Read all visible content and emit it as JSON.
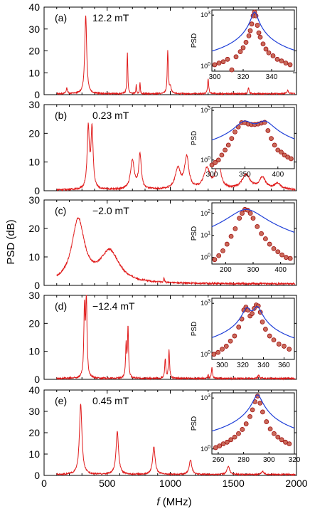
{
  "figure": {
    "ylabel": "PSD (dB)",
    "xlabel_italic": "f",
    "xlabel_unit": " (MHz)"
  },
  "chart_data": [
    {
      "type": "line",
      "panel": "(a)",
      "field": "12.2 mT",
      "xlim": [
        0,
        2000
      ],
      "ylim": [
        0,
        40
      ],
      "yticks": [
        "0",
        "10",
        "20",
        "30",
        "40"
      ],
      "xticks": [],
      "baseline": 0.4,
      "xstart": 100,
      "xend": 1990,
      "peaks": [
        [
          180,
          2.5,
          6
        ],
        [
          330,
          36,
          9
        ],
        [
          660,
          19,
          4
        ],
        [
          730,
          4,
          3
        ],
        [
          760,
          5,
          3
        ],
        [
          980,
          19.5,
          5
        ],
        [
          1000,
          3,
          8
        ],
        [
          1300,
          7,
          5
        ],
        [
          1620,
          3,
          5
        ],
        [
          1930,
          1.5,
          8
        ]
      ],
      "inset": {
        "ylabel": "PSD",
        "xlim": [
          298,
          356
        ],
        "xticks": [
          "300",
          "320",
          "340"
        ],
        "ylog": [
          0.5,
          2000
        ],
        "yticks": [
          "10^0",
          "10^3"
        ],
        "fit": [
          [
            328,
            1500,
            2
          ]
        ],
        "fitbase": 1,
        "points_x": [
          300,
          303,
          306,
          309,
          312,
          315,
          318,
          320,
          322,
          324,
          325,
          326,
          327,
          328,
          329,
          330,
          331,
          332,
          334,
          336,
          338,
          341,
          344,
          347,
          350,
          353
        ],
        "points_y": [
          1.2,
          1.5,
          1.8,
          2.5,
          0.6,
          3.5,
          7,
          12,
          25,
          60,
          120,
          300,
          900,
          1500,
          900,
          250,
          90,
          50,
          20,
          10,
          6,
          4,
          2.5,
          2,
          1.5,
          1.2
        ]
      }
    },
    {
      "type": "line",
      "panel": "(b)",
      "field": "0.23 mT",
      "xlim": [
        0,
        2000
      ],
      "ylim": [
        0,
        30
      ],
      "yticks": [
        "0",
        "10",
        "20",
        "30"
      ],
      "xticks": [],
      "baseline": 0.3,
      "xstart": 100,
      "xend": 1990,
      "peaks": [
        [
          350,
          21,
          10
        ],
        [
          380,
          21,
          10
        ],
        [
          700,
          10,
          18
        ],
        [
          760,
          12,
          12
        ],
        [
          1060,
          7,
          25
        ],
        [
          1130,
          11,
          20
        ],
        [
          1290,
          7,
          30
        ],
        [
          1380,
          10,
          22
        ],
        [
          1600,
          5,
          40
        ],
        [
          1730,
          4,
          30
        ],
        [
          1850,
          2,
          30
        ]
      ],
      "inset": {
        "ylabel": "PSD",
        "xlim": [
          300,
          425
        ],
        "xticks": [
          "300",
          "350",
          "400"
        ],
        "ylog": [
          0.3,
          1500
        ],
        "yticks": [
          "10^0",
          "10^3"
        ],
        "fit": [
          [
            350,
            200,
            12
          ],
          [
            380,
            200,
            12
          ]
        ],
        "fitbase": 0.8,
        "points_x": [
          300,
          305,
          310,
          315,
          320,
          325,
          330,
          335,
          340,
          345,
          350,
          355,
          360,
          365,
          370,
          375,
          380,
          385,
          390,
          395,
          400,
          405,
          410,
          415,
          420
        ],
        "points_y": [
          0.5,
          0.7,
          1,
          2,
          4,
          8,
          20,
          50,
          100,
          180,
          180,
          150,
          140,
          140,
          150,
          170,
          190,
          60,
          20,
          8,
          4,
          3,
          2,
          1.5,
          1.2
        ]
      }
    },
    {
      "type": "line",
      "panel": "(c)",
      "field": "−2.0 mT",
      "xlim": [
        0,
        2000
      ],
      "ylim": [
        0,
        30
      ],
      "yticks": [
        "0",
        "10",
        "20",
        "30"
      ],
      "xticks": [],
      "baseline": 0.5,
      "xstart": 100,
      "xend": 1990,
      "peaks": [
        [
          270,
          22,
          60
        ],
        [
          520,
          11,
          90
        ],
        [
          950,
          1.5,
          4
        ]
      ],
      "inset": {
        "ylabel": "PSD",
        "xlim": [
          150,
          450
        ],
        "xticks": [
          "200",
          "300",
          "400"
        ],
        "ylog": [
          0.5,
          300
        ],
        "yticks": [
          "10^0",
          "10^1",
          "10^2"
        ],
        "fit": [
          [
            275,
            150,
            55
          ]
        ],
        "fitbase": 0.3,
        "points_x": [
          160,
          175,
          190,
          205,
          220,
          235,
          250,
          260,
          270,
          280,
          290,
          300,
          315,
          330,
          345,
          360,
          375,
          390,
          405,
          420,
          435
        ],
        "points_y": [
          0.8,
          1.2,
          2,
          4,
          9,
          20,
          60,
          100,
          150,
          140,
          100,
          60,
          25,
          12,
          7,
          4,
          2.5,
          1.8,
          1.3,
          1,
          0.9
        ]
      }
    },
    {
      "type": "line",
      "panel": "(d)",
      "field": "−12.4 mT",
      "xlim": [
        0,
        2000
      ],
      "ylim": [
        0,
        30
      ],
      "yticks": [
        "0",
        "10",
        "20",
        "30"
      ],
      "xticks": [],
      "baseline": 0.3,
      "xstart": 100,
      "xend": 1990,
      "peaks": [
        [
          320,
          24,
          6
        ],
        [
          335,
          29,
          6
        ],
        [
          650,
          12,
          5
        ],
        [
          665,
          18,
          5
        ],
        [
          960,
          7,
          5
        ],
        [
          990,
          10,
          5
        ],
        [
          1300,
          1,
          5
        ],
        [
          1330,
          4,
          5
        ],
        [
          1700,
          1,
          8
        ]
      ],
      "inset": {
        "ylabel": "PSD",
        "xlim": [
          290,
          370
        ],
        "xticks": [
          "300",
          "320",
          "340",
          "360"
        ],
        "ylog": [
          0.5,
          2000
        ],
        "yticks": [
          "10^0",
          "10^3"
        ],
        "fit": [
          [
            324,
            500,
            3.5
          ],
          [
            334,
            600,
            3.5
          ]
        ],
        "fitbase": 0.6,
        "points_x": [
          292,
          296,
          300,
          304,
          308,
          312,
          316,
          319,
          321,
          323,
          325,
          327,
          329,
          331,
          333,
          335,
          337,
          339,
          342,
          346,
          350,
          355,
          360,
          365
        ],
        "points_y": [
          1,
          1.3,
          2,
          3,
          6,
          12,
          40,
          120,
          400,
          600,
          400,
          180,
          250,
          500,
          800,
          700,
          300,
          80,
          30,
          12,
          7,
          4,
          3,
          2
        ]
      }
    },
    {
      "type": "line",
      "panel": "(e)",
      "field": "0.45 mT",
      "xlim": [
        0,
        2000
      ],
      "ylim": [
        0,
        40
      ],
      "yticks": [
        "0",
        "10",
        "20",
        "30",
        "40"
      ],
      "xticks": [
        "0",
        "500",
        "1000",
        "1500",
        "2000"
      ],
      "baseline": 0.4,
      "xstart": 100,
      "xend": 1990,
      "peaks": [
        [
          290,
          33,
          12
        ],
        [
          580,
          20,
          12
        ],
        [
          870,
          13,
          12
        ],
        [
          1160,
          7,
          12
        ],
        [
          1460,
          4,
          12
        ],
        [
          1730,
          1.5,
          12
        ]
      ],
      "inset": {
        "ylabel": "PSD",
        "xlim": [
          255,
          320
        ],
        "xticks": [
          "260",
          "280",
          "300",
          "320"
        ],
        "ylog": [
          0.5,
          2000
        ],
        "yticks": [
          "10^0",
          "10^3"
        ],
        "fit": [
          [
            291,
            1500,
            3
          ]
        ],
        "fitbase": 1,
        "points_x": [
          258,
          261,
          264,
          267,
          270,
          273,
          276,
          279,
          282,
          285,
          287,
          289,
          291,
          293,
          295,
          298,
          301,
          304,
          307,
          310,
          313,
          316
        ],
        "points_y": [
          1.2,
          1.5,
          2,
          2.5,
          3.5,
          5,
          8,
          14,
          30,
          80,
          200,
          600,
          1300,
          500,
          150,
          40,
          15,
          8,
          5,
          3.5,
          2.5,
          2
        ]
      }
    }
  ]
}
